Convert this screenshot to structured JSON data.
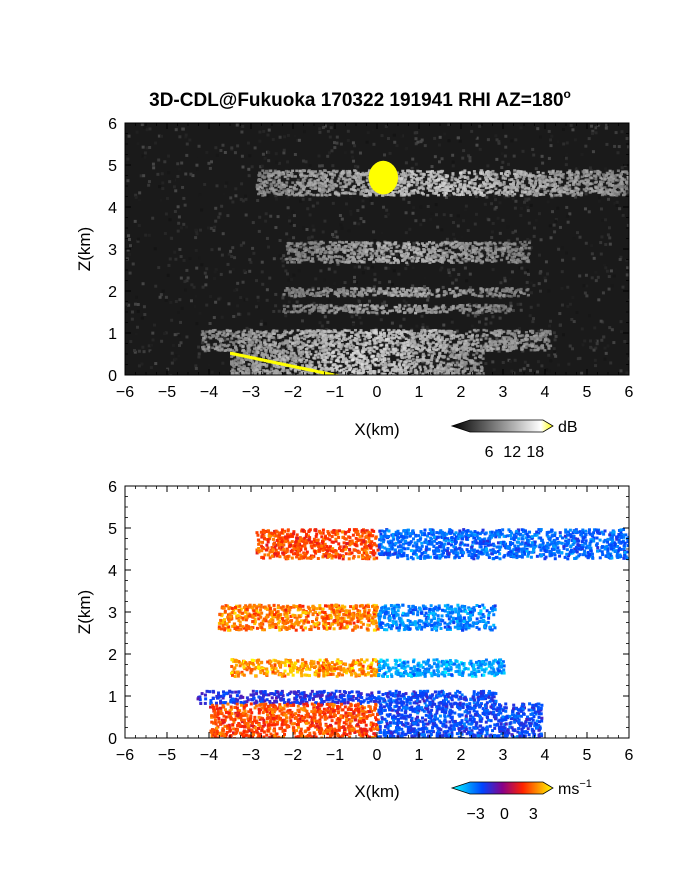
{
  "title": "3D-CDL@Fukuoka 170322 191941 RHI AZ=180",
  "title_degree": "o",
  "chart_data": [
    {
      "type": "heatmap",
      "name": "reflectivity",
      "xlabel": "X(km)",
      "ylabel": "Z(km)",
      "xlim": [
        -6,
        6
      ],
      "ylim": [
        0,
        6
      ],
      "xticks": [
        -6,
        -5,
        -4,
        -3,
        -2,
        -1,
        0,
        1,
        2,
        3,
        4,
        5,
        6
      ],
      "yticks": [
        0,
        1,
        2,
        3,
        4,
        5,
        6
      ],
      "colorbar": {
        "unit": "dB",
        "ticks": [
          6,
          12,
          18
        ],
        "range": [
          0,
          20
        ],
        "colors": [
          "#000000",
          "#ffffff",
          "#ffff00"
        ]
      },
      "background": "#1a1a1a",
      "features": [
        {
          "kind": "layer",
          "x": [
            -2.9,
            6.0
          ],
          "z": [
            4.3,
            4.9
          ],
          "value": 11
        },
        {
          "kind": "layer",
          "x": [
            -2.2,
            3.6
          ],
          "z": [
            2.7,
            3.2
          ],
          "value": 9
        },
        {
          "kind": "layer",
          "x": [
            -2.3,
            3.6
          ],
          "z": [
            1.9,
            2.1
          ],
          "value": 8
        },
        {
          "kind": "layer",
          "x": [
            -2.3,
            3.2
          ],
          "z": [
            1.5,
            1.7
          ],
          "value": 8
        },
        {
          "kind": "layer",
          "x": [
            -4.2,
            4.1
          ],
          "z": [
            0.6,
            1.1
          ],
          "value": 11
        },
        {
          "kind": "layer",
          "x": [
            -3.5,
            2.5
          ],
          "z": [
            0.0,
            0.6
          ],
          "value": 12
        },
        {
          "kind": "peak",
          "x": [
            -0.2,
            0.5
          ],
          "z": [
            4.3,
            5.1
          ],
          "value": 20
        }
      ]
    },
    {
      "type": "heatmap",
      "name": "doppler_velocity",
      "xlabel": "X(km)",
      "ylabel": "Z(km)",
      "xlim": [
        -6,
        6
      ],
      "ylim": [
        0,
        6
      ],
      "xticks": [
        -6,
        -5,
        -4,
        -3,
        -2,
        -1,
        0,
        1,
        2,
        3,
        4,
        5,
        6
      ],
      "yticks": [
        0,
        1,
        2,
        3,
        4,
        5,
        6
      ],
      "colorbar": {
        "unit": "ms",
        "unit_exponent": "−1",
        "ticks": [
          "−3",
          "0",
          "3"
        ],
        "range": [
          -4,
          4
        ],
        "colors": [
          "#00ffff",
          "#0000ff",
          "#ff0000",
          "#ffff00"
        ]
      },
      "background": "#ffffff",
      "features": [
        {
          "kind": "velocity",
          "x": [
            -2.9,
            6.0
          ],
          "z": [
            4.3,
            5.0
          ],
          "value_left": 2.5,
          "value_right": -2.5
        },
        {
          "kind": "velocity",
          "x": [
            -3.8,
            2.8
          ],
          "z": [
            2.6,
            3.2
          ],
          "value_left": 3.2,
          "value_right": -3.0
        },
        {
          "kind": "velocity",
          "x": [
            -3.5,
            3.0
          ],
          "z": [
            1.5,
            1.9
          ],
          "value_left": 3.6,
          "value_right": -3.6
        },
        {
          "kind": "velocity",
          "x": [
            -4.3,
            2.8
          ],
          "z": [
            0.85,
            1.15
          ],
          "value_left": -1.5,
          "value_right": -2.0
        },
        {
          "kind": "velocity",
          "x": [
            -4.0,
            3.9
          ],
          "z": [
            0.0,
            0.85
          ],
          "value_left": 2.5,
          "value_right": -2.0
        }
      ]
    }
  ]
}
